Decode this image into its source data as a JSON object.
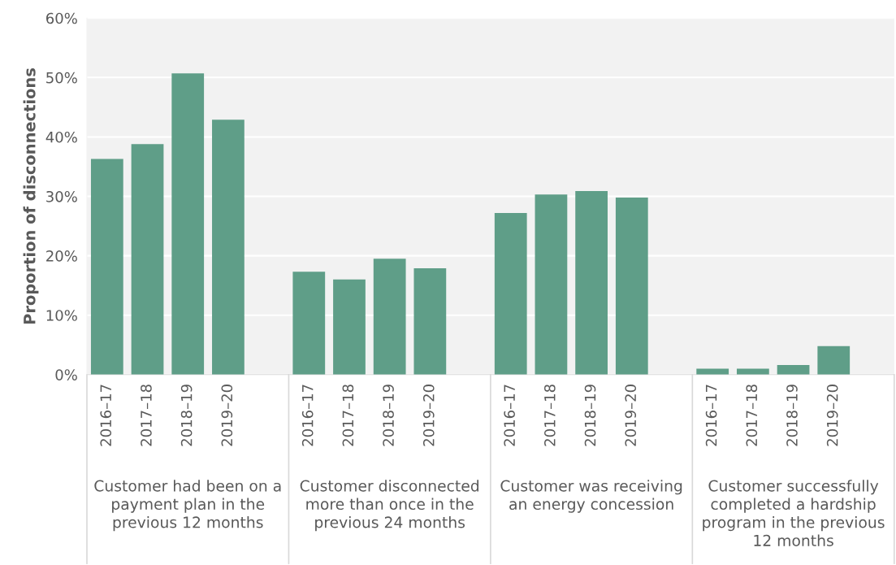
{
  "chart_data": {
    "type": "bar",
    "ylabel": "Proportion of disconnections",
    "categories": [
      "2016–17",
      "2017–18",
      "2018–19",
      "2019–20",
      null,
      "2016–17",
      "2017–18",
      "2018–19",
      "2019–20",
      null,
      "2016–17",
      "2017–18",
      "2018–19",
      "2019–20",
      null,
      "2016–17",
      "2017–18",
      "2018–19",
      "2019–20",
      null
    ],
    "values": [
      36.3,
      38.8,
      50.7,
      42.9,
      null,
      17.3,
      16.0,
      19.5,
      17.9,
      null,
      27.2,
      30.3,
      30.9,
      29.8,
      null,
      1.0,
      1.0,
      1.6,
      4.8,
      null
    ],
    "color": "#5f9e88",
    "ylim": [
      0,
      60
    ],
    "yticks": [
      {
        "value": 0,
        "label": "0%"
      },
      {
        "value": 10,
        "label": "10%"
      },
      {
        "value": 20,
        "label": "20%"
      },
      {
        "value": 30,
        "label": "30%"
      },
      {
        "value": 40,
        "label": "40%"
      },
      {
        "value": 50,
        "label": "50%"
      },
      {
        "value": 60,
        "label": "60%"
      }
    ],
    "grid": "y",
    "annotations": [
      "Customer had been on a payment plan in the previous 12 months",
      "Customer disconnected more than once in the previous 24 months",
      "Customer was receiving an energy concession",
      "Customer successfully completed a hardship program in the previous 12 months"
    ]
  }
}
